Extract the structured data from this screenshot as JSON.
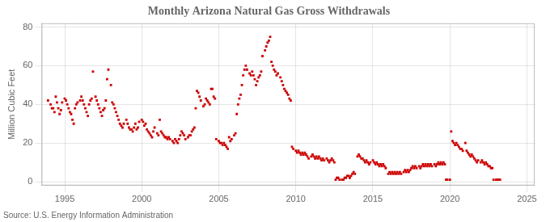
{
  "chart_data": {
    "type": "scatter",
    "title": "Monthly Arizona Natural Gas Gross Withdrawals",
    "ylabel": "Million Cubic Feet",
    "annotations": [
      "Source: U.S. Energy Information Administration"
    ],
    "color": "#cc0000",
    "marker": "square",
    "grid": true,
    "xlim": [
      1993.5,
      2025.5
    ],
    "ylim": [
      -2,
      82
    ],
    "xticks": [
      1995,
      2000,
      2005,
      2010,
      2015,
      2020,
      2025
    ],
    "yticks": [
      0,
      20,
      40,
      60,
      80
    ],
    "x": [
      1993.917,
      1994.083,
      1994.167,
      1994.25,
      1994.333,
      1994.417,
      1994.5,
      1994.583,
      1994.667,
      1994.75,
      1994.833,
      1995.0,
      1995.083,
      1995.167,
      1995.25,
      1995.333,
      1995.417,
      1995.5,
      1995.583,
      1995.667,
      1995.75,
      1995.833,
      1996.0,
      1996.083,
      1996.167,
      1996.25,
      1996.333,
      1996.417,
      1996.5,
      1996.583,
      1996.667,
      1996.75,
      1996.833,
      1997.0,
      1997.083,
      1997.167,
      1997.25,
      1997.333,
      1997.417,
      1997.5,
      1997.583,
      1997.667,
      1997.75,
      1997.833,
      1998.0,
      1998.083,
      1998.167,
      1998.25,
      1998.333,
      1998.417,
      1998.5,
      1998.583,
      1998.667,
      1998.75,
      1998.833,
      1999.0,
      1999.083,
      1999.167,
      1999.25,
      1999.333,
      1999.417,
      1999.5,
      1999.583,
      1999.667,
      1999.75,
      1999.833,
      2000.0,
      2000.083,
      2000.167,
      2000.25,
      2000.333,
      2000.417,
      2000.5,
      2000.583,
      2000.667,
      2000.75,
      2000.833,
      2001.0,
      2001.083,
      2001.167,
      2001.25,
      2001.333,
      2001.417,
      2001.5,
      2001.583,
      2001.667,
      2001.75,
      2001.833,
      2002.0,
      2002.083,
      2002.167,
      2002.25,
      2002.333,
      2002.417,
      2002.5,
      2002.583,
      2002.667,
      2002.75,
      2002.833,
      2003.0,
      2003.083,
      2003.167,
      2003.25,
      2003.333,
      2003.417,
      2003.5,
      2003.583,
      2003.667,
      2003.75,
      2003.833,
      2004.0,
      2004.083,
      2004.167,
      2004.25,
      2004.333,
      2004.417,
      2004.5,
      2004.583,
      2004.667,
      2004.75,
      2004.833,
      2005.0,
      2005.083,
      2005.167,
      2005.25,
      2005.333,
      2005.417,
      2005.5,
      2005.583,
      2005.667,
      2005.75,
      2005.833,
      2006.0,
      2006.083,
      2006.167,
      2006.25,
      2006.333,
      2006.417,
      2006.5,
      2006.583,
      2006.667,
      2006.75,
      2006.833,
      2007.0,
      2007.083,
      2007.167,
      2007.25,
      2007.333,
      2007.417,
      2007.5,
      2007.583,
      2007.667,
      2007.75,
      2007.833,
      2008.0,
      2008.083,
      2008.167,
      2008.25,
      2008.333,
      2008.417,
      2008.5,
      2008.583,
      2008.667,
      2008.75,
      2008.833,
      2009.0,
      2009.083,
      2009.167,
      2009.25,
      2009.333,
      2009.417,
      2009.5,
      2009.583,
      2009.667,
      2009.75,
      2009.833,
      2010.0,
      2010.083,
      2010.167,
      2010.25,
      2010.333,
      2010.417,
      2010.5,
      2010.583,
      2010.667,
      2010.75,
      2010.833,
      2011.0,
      2011.083,
      2011.167,
      2011.25,
      2011.333,
      2011.417,
      2011.5,
      2011.583,
      2011.667,
      2011.75,
      2011.833,
      2012.0,
      2012.083,
      2012.167,
      2012.25,
      2012.333,
      2012.417,
      2012.5,
      2012.583,
      2012.667,
      2012.75,
      2012.833,
      2013.0,
      2013.083,
      2013.167,
      2013.25,
      2013.333,
      2013.417,
      2013.5,
      2013.583,
      2013.667,
      2013.75,
      2013.833,
      2014.0,
      2014.083,
      2014.167,
      2014.25,
      2014.333,
      2014.417,
      2014.5,
      2014.583,
      2014.667,
      2014.75,
      2014.833,
      2015.0,
      2015.083,
      2015.167,
      2015.25,
      2015.333,
      2015.417,
      2015.5,
      2015.583,
      2015.667,
      2015.75,
      2015.833,
      2016.0,
      2016.083,
      2016.167,
      2016.25,
      2016.333,
      2016.417,
      2016.5,
      2016.583,
      2016.667,
      2016.75,
      2016.833,
      2017.0,
      2017.083,
      2017.167,
      2017.25,
      2017.333,
      2017.417,
      2017.5,
      2017.583,
      2017.667,
      2017.75,
      2017.833,
      2018.0,
      2018.083,
      2018.167,
      2018.25,
      2018.333,
      2018.417,
      2018.5,
      2018.583,
      2018.667,
      2018.75,
      2018.833,
      2019.0,
      2019.083,
      2019.167,
      2019.25,
      2019.333,
      2019.417,
      2019.5,
      2019.583,
      2019.667,
      2019.75,
      2019.833,
      2020.0,
      2020.083,
      2020.167,
      2020.25,
      2020.333,
      2020.417,
      2020.5,
      2020.583,
      2020.667,
      2020.75,
      2020.833,
      2021.0,
      2021.083,
      2021.167,
      2021.25,
      2021.333,
      2021.417,
      2021.5,
      2021.583,
      2021.667,
      2021.75,
      2021.833,
      2022.0,
      2022.083,
      2022.167,
      2022.25,
      2022.333,
      2022.417,
      2022.5,
      2022.583,
      2022.667,
      2022.75,
      2022.833,
      2023.0,
      2023.083,
      2023.167,
      2023.25
    ],
    "values": [
      42,
      40,
      38,
      38,
      36,
      44,
      41,
      38,
      35,
      37,
      41,
      43,
      42,
      40,
      38,
      36,
      35,
      32,
      30,
      38,
      40,
      41,
      42,
      44,
      42,
      40,
      38,
      36,
      34,
      40,
      42,
      43,
      57,
      44,
      42,
      40,
      38,
      36,
      34,
      37,
      38,
      42,
      53,
      58,
      50,
      41,
      40,
      38,
      36,
      34,
      32,
      30,
      29,
      28,
      30,
      32,
      30,
      28,
      27,
      27,
      26,
      28,
      30,
      27,
      28,
      31,
      32,
      31,
      29,
      30,
      27,
      26,
      25,
      24,
      23,
      26,
      28,
      25,
      24,
      32,
      26,
      25,
      24,
      23,
      23,
      22,
      23,
      22,
      21,
      20,
      22,
      21,
      20,
      22,
      24,
      26,
      25,
      24,
      22,
      23,
      24,
      24,
      26,
      27,
      28,
      38,
      47,
      46,
      44,
      42,
      39,
      40,
      43,
      42,
      41,
      40,
      48,
      48,
      44,
      43,
      22,
      21,
      20,
      20,
      19,
      20,
      19,
      18,
      17,
      23,
      21,
      22,
      24,
      25,
      35,
      40,
      43,
      45,
      50,
      55,
      58,
      60,
      58,
      56,
      55,
      57,
      55,
      53,
      50,
      52,
      54,
      55,
      57,
      65,
      68,
      70,
      72,
      73,
      75,
      62,
      60,
      58,
      57,
      55,
      56,
      54,
      52,
      50,
      48,
      47,
      46,
      45,
      43,
      42,
      18,
      17,
      16,
      15,
      16,
      15,
      14,
      15,
      14,
      15,
      14,
      13,
      12,
      13,
      14,
      13,
      12,
      13,
      12,
      13,
      12,
      11,
      12,
      11,
      12,
      11,
      10,
      11,
      12,
      11,
      10,
      1,
      2,
      2,
      1,
      1,
      1,
      2,
      2,
      3,
      3,
      2,
      3,
      4,
      5,
      4,
      13,
      14,
      13,
      12,
      12,
      11,
      10,
      11,
      10,
      9,
      10,
      11,
      10,
      9,
      10,
      9,
      8,
      9,
      8,
      9,
      8,
      7,
      4,
      5,
      4,
      5,
      4,
      5,
      4,
      5,
      4,
      5,
      4,
      5,
      6,
      5,
      6,
      5,
      6,
      7,
      8,
      7,
      8,
      7,
      8,
      7,
      8,
      9,
      8,
      9,
      8,
      9,
      8,
      9,
      8,
      9,
      8,
      9,
      10,
      9,
      10,
      9,
      10,
      9,
      1,
      1,
      1,
      26,
      21,
      20,
      19,
      20,
      19,
      18,
      17,
      17,
      16,
      20,
      16,
      15,
      14,
      13,
      14,
      13,
      12,
      11,
      10,
      11,
      10,
      11,
      10,
      9,
      10,
      9,
      8,
      8,
      7,
      7,
      1,
      1,
      1,
      1,
      1
    ]
  }
}
